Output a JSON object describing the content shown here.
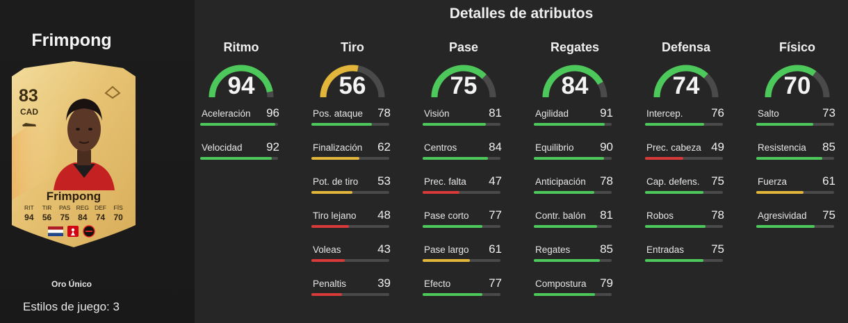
{
  "player": {
    "name": "Frimpong",
    "rating": "83",
    "position": "CAD",
    "card_name": "Frimpong",
    "card_type": "Oro Único",
    "playstyles_label": "Estilos de juego: 3",
    "face_stats": [
      {
        "label": "RIT",
        "value": "94"
      },
      {
        "label": "TIR",
        "value": "56"
      },
      {
        "label": "PAS",
        "value": "75"
      },
      {
        "label": "REG",
        "value": "84"
      },
      {
        "label": "DEF",
        "value": "74"
      },
      {
        "label": "FÍS",
        "value": "70"
      }
    ]
  },
  "details_title": "Detalles de atributos",
  "colors": {
    "green": "#4cc95a",
    "yellow": "#e2b63a",
    "red": "#d83a3a",
    "track": "#4a4a4a"
  },
  "categories": [
    {
      "name": "Ritmo",
      "value": 94,
      "attributes": [
        {
          "label": "Aceleración",
          "value": 96
        },
        {
          "label": "Velocidad",
          "value": 92
        }
      ]
    },
    {
      "name": "Tiro",
      "value": 56,
      "attributes": [
        {
          "label": "Pos. ataque",
          "value": 78
        },
        {
          "label": "Finalización",
          "value": 62
        },
        {
          "label": "Pot. de tiro",
          "value": 53
        },
        {
          "label": "Tiro lejano",
          "value": 48
        },
        {
          "label": "Voleas",
          "value": 43
        },
        {
          "label": "Penaltis",
          "value": 39
        }
      ]
    },
    {
      "name": "Pase",
      "value": 75,
      "attributes": [
        {
          "label": "Visión",
          "value": 81
        },
        {
          "label": "Centros",
          "value": 84
        },
        {
          "label": "Prec. falta",
          "value": 47
        },
        {
          "label": "Pase corto",
          "value": 77
        },
        {
          "label": "Pase largo",
          "value": 61
        },
        {
          "label": "Efecto",
          "value": 77
        }
      ]
    },
    {
      "name": "Regates",
      "value": 84,
      "attributes": [
        {
          "label": "Agilidad",
          "value": 91
        },
        {
          "label": "Equilibrio",
          "value": 90
        },
        {
          "label": "Anticipación",
          "value": 78
        },
        {
          "label": "Contr. balón",
          "value": 81
        },
        {
          "label": "Regates",
          "value": 85
        },
        {
          "label": "Compostura",
          "value": 79
        }
      ]
    },
    {
      "name": "Defensa",
      "value": 74,
      "attributes": [
        {
          "label": "Intercep.",
          "value": 76
        },
        {
          "label": "Prec. cabeza",
          "value": 49
        },
        {
          "label": "Cap. defens.",
          "value": 75
        },
        {
          "label": "Robos",
          "value": 78
        },
        {
          "label": "Entradas",
          "value": 75
        }
      ]
    },
    {
      "name": "Físico",
      "value": 70,
      "attributes": [
        {
          "label": "Salto",
          "value": 73
        },
        {
          "label": "Resistencia",
          "value": 85
        },
        {
          "label": "Fuerza",
          "value": 61
        },
        {
          "label": "Agresividad",
          "value": 75
        }
      ]
    }
  ]
}
